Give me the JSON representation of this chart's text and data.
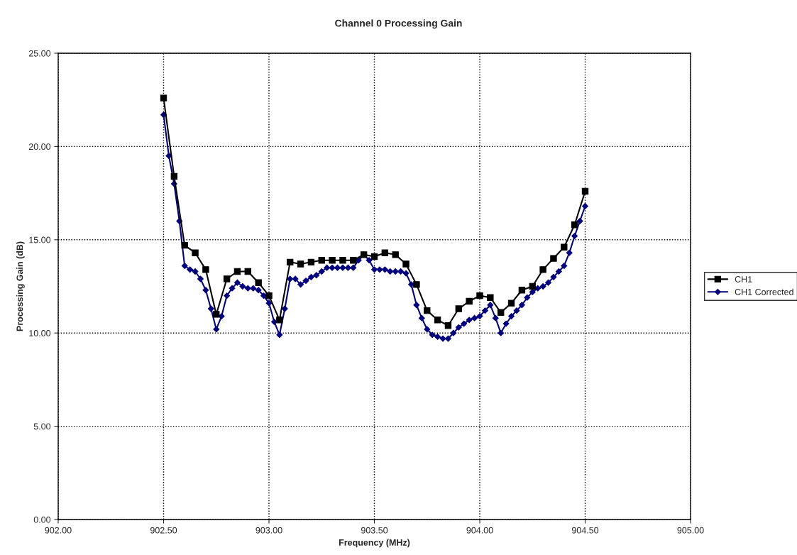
{
  "chart_data": {
    "type": "line",
    "title": "Channel 0 Processing Gain",
    "xlabel": "Frequency (MHz)",
    "ylabel": "Processing Gain (dB)",
    "xlim": [
      902.0,
      905.0
    ],
    "ylim": [
      0,
      25
    ],
    "xticks": [
      {
        "value": 902.0,
        "label": "902.00"
      },
      {
        "value": 902.5,
        "label": "902.50"
      },
      {
        "value": 903.0,
        "label": "903.00"
      },
      {
        "value": 903.5,
        "label": "903.50"
      },
      {
        "value": 904.0,
        "label": "904.00"
      },
      {
        "value": 904.5,
        "label": "904.50"
      },
      {
        "value": 905.0,
        "label": "905.00"
      }
    ],
    "yticks": [
      {
        "value": 0,
        "label": "0.00"
      },
      {
        "value": 5,
        "label": "5.00"
      },
      {
        "value": 10,
        "label": "10.00"
      },
      {
        "value": 15,
        "label": "15.00"
      },
      {
        "value": 20,
        "label": "20.00"
      },
      {
        "value": 25,
        "label": "25.00"
      }
    ],
    "grid": true,
    "legend": "right",
    "line_style": "solid",
    "series": [
      {
        "name": "CH1",
        "color": "#000000",
        "marker": "square",
        "x": [
          902.5,
          902.55,
          902.6,
          902.65,
          902.7,
          902.75,
          902.8,
          902.85,
          902.9,
          902.95,
          903.0,
          903.05,
          903.1,
          903.15,
          903.2,
          903.25,
          903.3,
          903.35,
          903.4,
          903.45,
          903.5,
          903.55,
          903.6,
          903.65,
          903.7,
          903.75,
          903.8,
          903.85,
          903.9,
          903.95,
          904.0,
          904.05,
          904.1,
          904.15,
          904.2,
          904.25,
          904.3,
          904.35,
          904.4,
          904.45,
          904.5
        ],
        "values": [
          22.6,
          18.4,
          14.7,
          14.3,
          13.4,
          11.0,
          12.9,
          13.3,
          13.3,
          12.7,
          12.0,
          10.7,
          13.8,
          13.7,
          13.8,
          13.9,
          13.9,
          13.9,
          13.9,
          14.2,
          14.1,
          14.3,
          14.2,
          13.7,
          12.6,
          11.2,
          10.7,
          10.4,
          11.3,
          11.7,
          12.0,
          11.9,
          11.1,
          11.6,
          12.3,
          12.5,
          13.4,
          14.0,
          14.6,
          15.8,
          17.6
        ]
      },
      {
        "name": "CH1 Corrected",
        "color": "#000080",
        "marker": "diamond",
        "x": [
          902.5,
          902.525,
          902.55,
          902.575,
          902.6,
          902.625,
          902.65,
          902.675,
          902.7,
          902.725,
          902.75,
          902.775,
          902.8,
          902.825,
          902.85,
          902.875,
          902.9,
          902.925,
          902.95,
          902.975,
          903.0,
          903.025,
          903.05,
          903.075,
          903.1,
          903.125,
          903.15,
          903.175,
          903.2,
          903.225,
          903.25,
          903.275,
          903.3,
          903.325,
          903.35,
          903.375,
          903.4,
          903.425,
          903.45,
          903.475,
          903.5,
          903.525,
          903.55,
          903.575,
          903.6,
          903.625,
          903.65,
          903.675,
          903.7,
          903.725,
          903.75,
          903.775,
          903.8,
          903.825,
          903.85,
          903.875,
          903.9,
          903.925,
          903.95,
          903.975,
          904.0,
          904.025,
          904.05,
          904.075,
          904.1,
          904.125,
          904.15,
          904.175,
          904.2,
          904.225,
          904.25,
          904.275,
          904.3,
          904.325,
          904.35,
          904.375,
          904.4,
          904.425,
          904.45,
          904.475,
          904.5
        ],
        "values": [
          21.7,
          19.5,
          18.0,
          16.0,
          13.6,
          13.4,
          13.3,
          12.9,
          12.3,
          11.3,
          10.2,
          10.9,
          12.0,
          12.4,
          12.7,
          12.5,
          12.4,
          12.4,
          12.3,
          12.0,
          11.6,
          10.6,
          9.9,
          11.3,
          12.9,
          12.9,
          12.6,
          12.8,
          13.0,
          13.1,
          13.3,
          13.5,
          13.5,
          13.5,
          13.5,
          13.5,
          13.5,
          13.9,
          14.2,
          13.9,
          13.4,
          13.4,
          13.4,
          13.3,
          13.3,
          13.3,
          13.2,
          12.6,
          11.5,
          10.8,
          10.2,
          9.9,
          9.8,
          9.7,
          9.7,
          10.0,
          10.3,
          10.5,
          10.7,
          10.8,
          10.9,
          11.2,
          11.5,
          10.8,
          10.0,
          10.5,
          10.9,
          11.2,
          11.5,
          11.9,
          12.2,
          12.4,
          12.5,
          12.7,
          13.0,
          13.3,
          13.6,
          14.3,
          15.2,
          16.0,
          16.8
        ]
      }
    ]
  }
}
